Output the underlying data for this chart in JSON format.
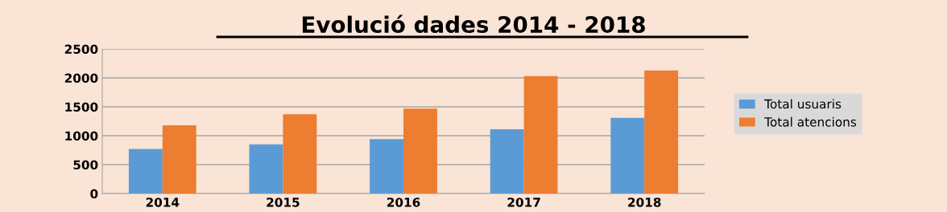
{
  "chart_data": {
    "type": "bar",
    "title": "Evolució dades 2014 - 2018",
    "categories": [
      "2014",
      "2015",
      "2016",
      "2017",
      "2018"
    ],
    "series": [
      {
        "name": "Total usuaris",
        "color": "#5b9bd5",
        "values": [
          770,
          850,
          940,
          1110,
          1310
        ]
      },
      {
        "name": "Total atencions",
        "color": "#ed7d31",
        "values": [
          1180,
          1370,
          1470,
          2030,
          2130
        ]
      }
    ],
    "ylim": [
      0,
      2500
    ],
    "yticks": [
      0,
      500,
      1000,
      1500,
      2000,
      2500
    ],
    "grid": "y",
    "legend": "right"
  }
}
